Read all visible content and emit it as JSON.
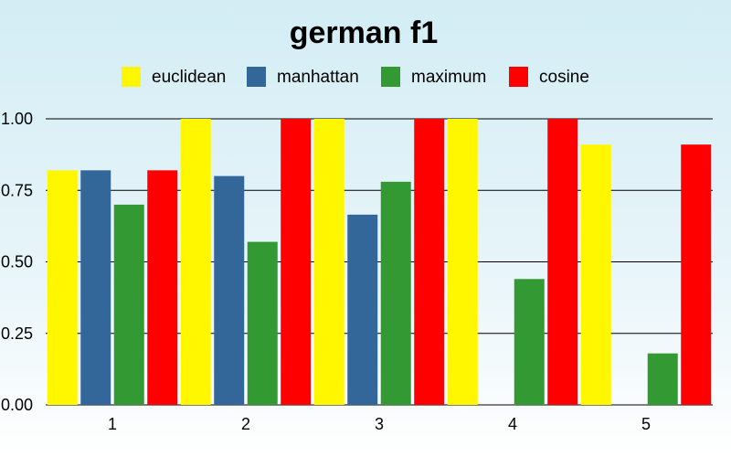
{
  "chart_data": {
    "type": "bar",
    "title": "german f1",
    "xlabel": "",
    "ylabel": "",
    "categories": [
      "1",
      "2",
      "3",
      "4",
      "5"
    ],
    "ylim": [
      0,
      1
    ],
    "yticks": [
      "0.00",
      "0.25",
      "0.50",
      "0.75",
      "1.00"
    ],
    "grid": true,
    "legend_position": "top",
    "series": [
      {
        "name": "euclidean",
        "color": "#fff700",
        "values": [
          0.82,
          1.0,
          1.0,
          1.0,
          0.91
        ]
      },
      {
        "name": "manhattan",
        "color": "#336699",
        "values": [
          0.82,
          0.8,
          0.665,
          0.0,
          0.0
        ]
      },
      {
        "name": "maximum",
        "color": "#339933",
        "values": [
          0.7,
          0.57,
          0.78,
          0.44,
          0.18
        ]
      },
      {
        "name": "cosine",
        "color": "#ff0000",
        "values": [
          0.82,
          1.0,
          1.0,
          1.0,
          0.91
        ]
      }
    ]
  }
}
